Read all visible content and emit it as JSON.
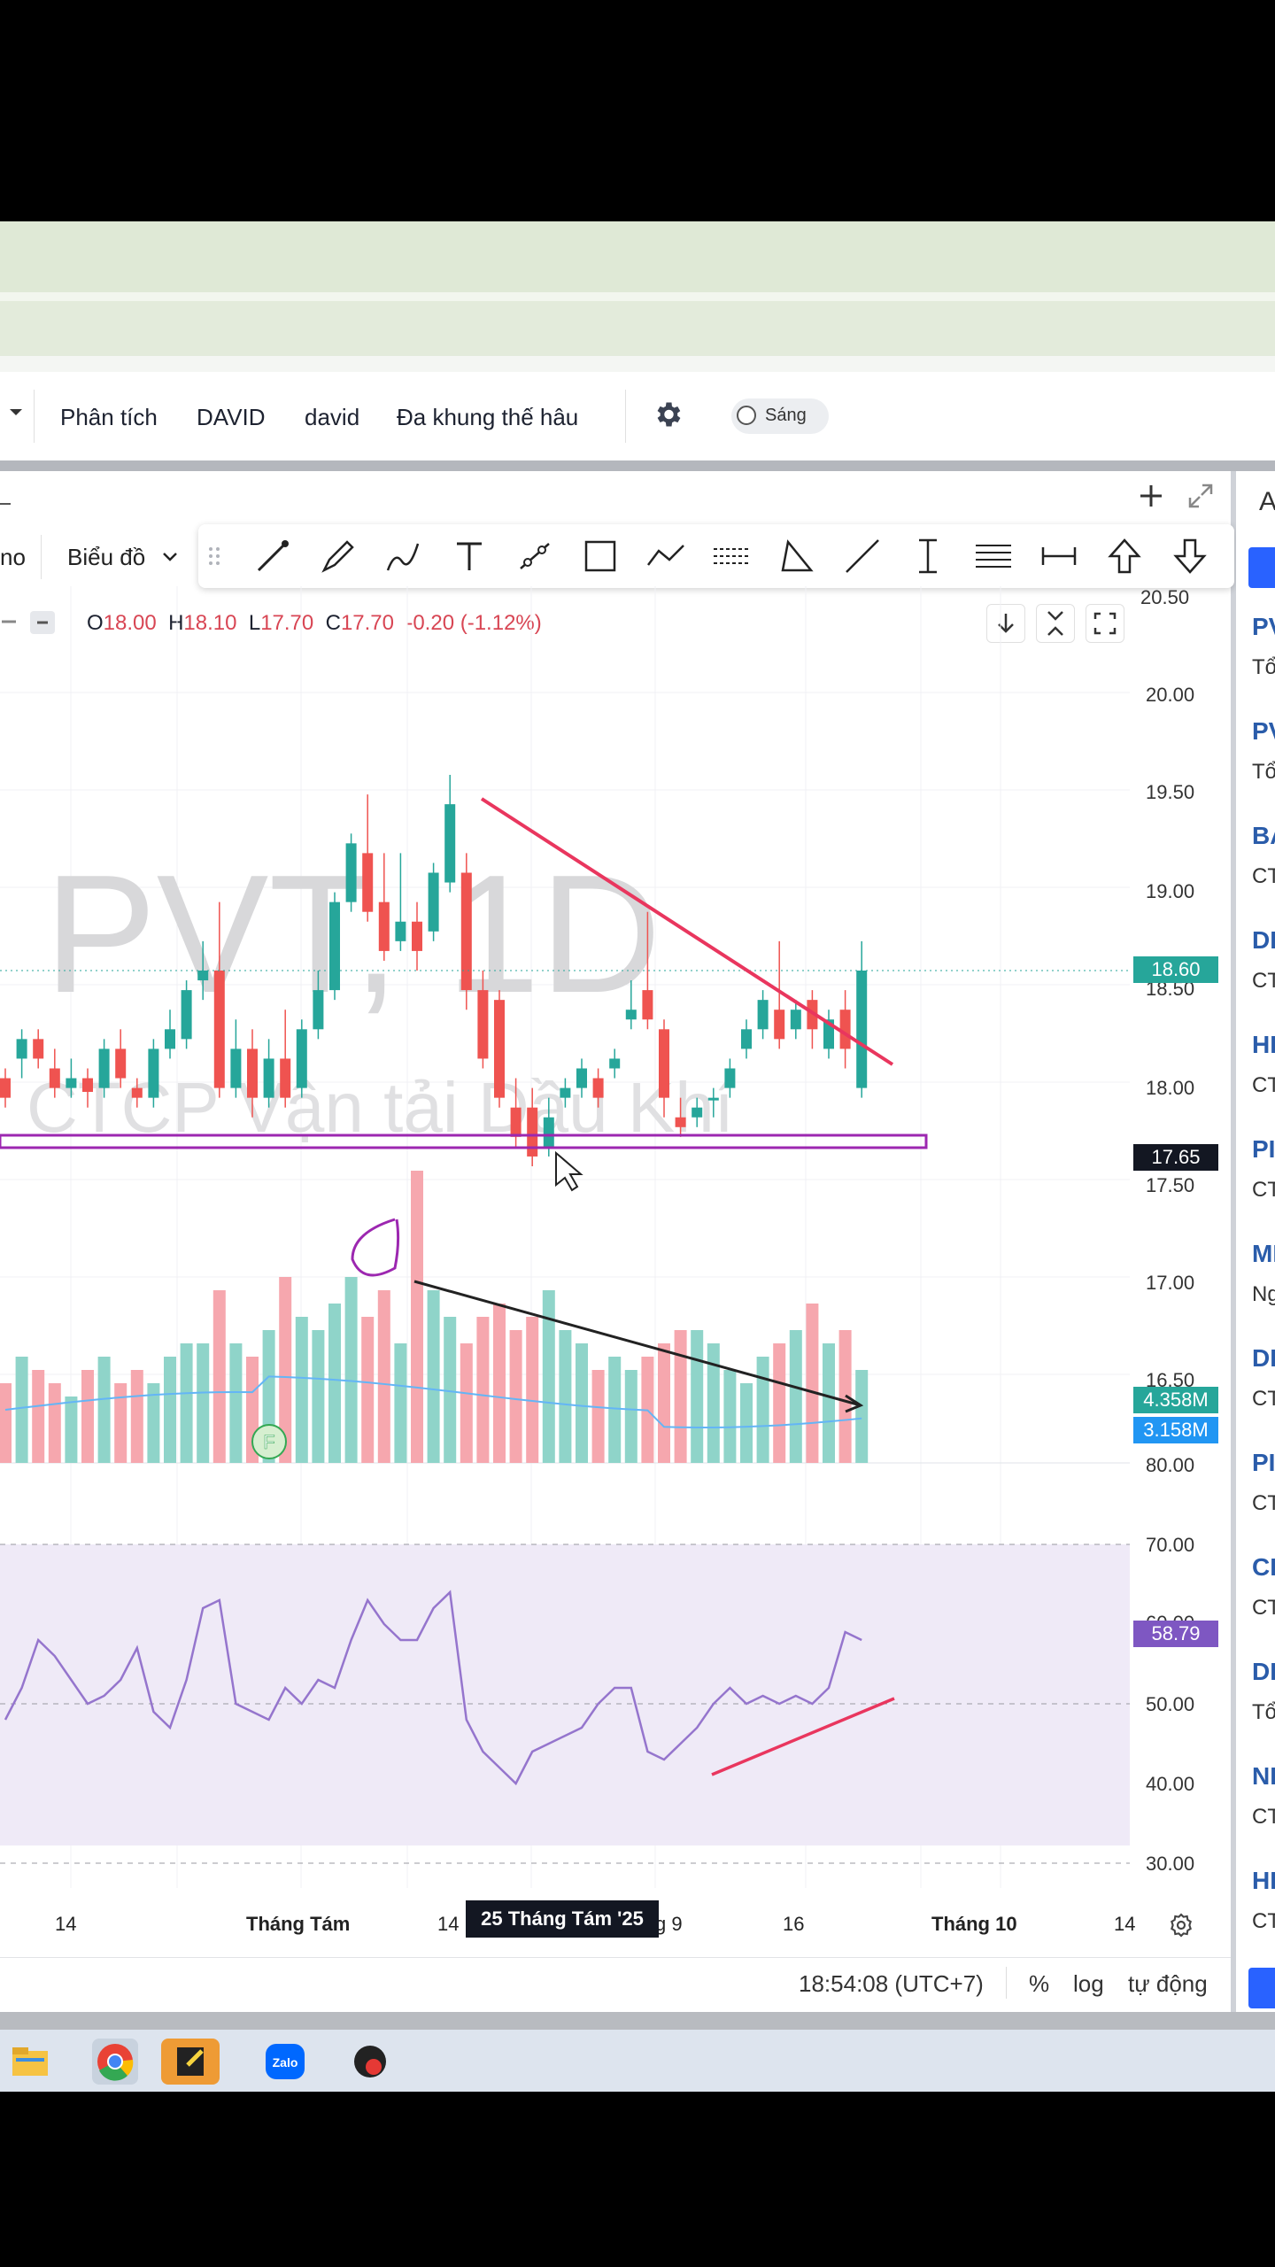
{
  "topbar": {
    "menu": [
      "Phân tích",
      "DAVID",
      "david",
      "Đa khung thế hâu"
    ],
    "theme_toggle_label": "Sáng"
  },
  "chart_toolbar": {
    "left_label": "Biểu đồ",
    "partial_label": "no"
  },
  "legend": {
    "o_label": "O",
    "o_value": "18.00",
    "h_label": "H",
    "h_value": "18.10",
    "l_label": "L",
    "l_value": "17.70",
    "c_label": "C",
    "c_value": "17.70",
    "change": "-0.20 (-1.12%)"
  },
  "watermark": {
    "symbol": "PVT, 1D",
    "name": "CTCP Vận tải Dầu Khí"
  },
  "price_axis": [
    "20.50",
    "20.00",
    "19.50",
    "19.00",
    "18.50",
    "18.00",
    "17.50",
    "17.00",
    "16.50"
  ],
  "price_tags": {
    "last": "18.60",
    "cursor": "17.65",
    "vol1": "4.358M",
    "vol2": "3.158M",
    "rsi": "58.79"
  },
  "rsi_axis": [
    "80.00",
    "70.00",
    "60.00",
    "50.00",
    "40.00",
    "30.00"
  ],
  "time_axis": [
    "14",
    "Tháng Tám",
    "14",
    "g 9",
    "16",
    "Tháng 10",
    "14"
  ],
  "cursor_date": "25 Tháng Tám '25",
  "status": {
    "clock": "18:54:08 (UTC+7)",
    "percent": "%",
    "log": "log",
    "auto": "tự động"
  },
  "right_panel": [
    {
      "code": "PV",
      "sub": "Tổ"
    },
    {
      "code": "PV",
      "sub": "Tổ"
    },
    {
      "code": "BA",
      "sub": "CT"
    },
    {
      "code": "DI",
      "sub": "CT"
    },
    {
      "code": "HI",
      "sub": "CT"
    },
    {
      "code": "PI",
      "sub": "CT"
    },
    {
      "code": "MI",
      "sub": "Ng"
    },
    {
      "code": "DI",
      "sub": "CT"
    },
    {
      "code": "PI",
      "sub": "CT"
    },
    {
      "code": "CI",
      "sub": "CT"
    },
    {
      "code": "DI",
      "sub": "Tổ"
    },
    {
      "code": "NI",
      "sub": "CT"
    },
    {
      "code": "HI",
      "sub": "CT"
    }
  ],
  "rp_header": "A",
  "flag_label": "F",
  "taskbar_zalo": "Zalo",
  "colors": {
    "up": "#26a69a",
    "down": "#ef5350",
    "trend_red": "#e9365e",
    "support_purple": "#9c27b0",
    "rsi_line": "#7e57c2",
    "rsi_band": "#efeaf7",
    "volume_ma": "#64b5f6"
  }
}
